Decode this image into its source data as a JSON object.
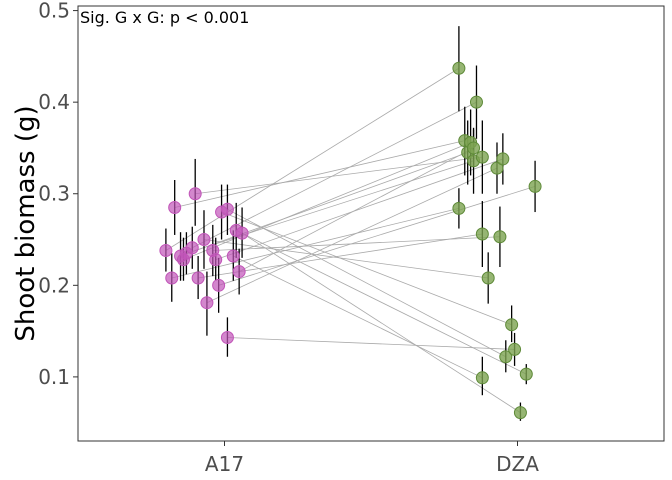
{
  "chart_data": {
    "type": "scatter",
    "title": "",
    "xlabel": "",
    "ylabel": "Shoot biomass (g)",
    "annotation": "Sig. G x G: p < 0.001",
    "categories": [
      "A17",
      "DZA"
    ],
    "ylim": [
      0.03,
      0.505
    ],
    "y_ticks": [
      0.1,
      0.2,
      0.3,
      0.4,
      0.5
    ],
    "y_tick_labels": [
      "0.1",
      "0.2",
      "0.3",
      "0.4",
      "0.5"
    ],
    "grid": false,
    "legend": "none",
    "colors": {
      "A17": "#c154b8",
      "DZA": "#7ca350",
      "connector": "#aaaaaa",
      "errorbar": "#000000",
      "frame": "#333333"
    },
    "pairs": [
      {
        "a17_x": 0.8,
        "a17": 0.238,
        "a17_lo": 0.215,
        "a17_hi": 0.262,
        "dza_x": 1.8,
        "dza": 0.437,
        "dza_lo": 0.39,
        "dza_hi": 0.483
      },
      {
        "a17_x": 0.82,
        "a17": 0.208,
        "a17_lo": 0.182,
        "a17_hi": 0.235,
        "dza_x": 1.8,
        "dza": 0.284,
        "dza_lo": 0.262,
        "dza_hi": 0.306
      },
      {
        "a17_x": 0.83,
        "a17": 0.285,
        "a17_lo": 0.255,
        "a17_hi": 0.315,
        "dza_x": 1.82,
        "dza": 0.358,
        "dza_lo": 0.32,
        "dza_hi": 0.395
      },
      {
        "a17_x": 0.85,
        "a17": 0.232,
        "a17_lo": 0.205,
        "a17_hi": 0.258,
        "dza_x": 1.83,
        "dza": 0.345,
        "dza_lo": 0.31,
        "dza_hi": 0.38
      },
      {
        "a17_x": 0.86,
        "a17": 0.228,
        "a17_lo": 0.205,
        "a17_hi": 0.252,
        "dza_x": 1.84,
        "dza": 0.356,
        "dza_lo": 0.32,
        "dza_hi": 0.392
      },
      {
        "a17_x": 0.87,
        "a17": 0.235,
        "a17_lo": 0.212,
        "a17_hi": 0.258,
        "dza_x": 1.85,
        "dza": 0.336,
        "dza_lo": 0.3,
        "dza_hi": 0.372
      },
      {
        "a17_x": 0.89,
        "a17": 0.241,
        "a17_lo": 0.218,
        "a17_hi": 0.264,
        "dza_x": 1.86,
        "dza": 0.4,
        "dza_lo": 0.36,
        "dza_hi": 0.44
      },
      {
        "a17_x": 0.9,
        "a17": 0.3,
        "a17_lo": 0.265,
        "a17_hi": 0.338,
        "dza_x": 1.88,
        "dza": 0.34,
        "dza_lo": 0.3,
        "dza_hi": 0.38
      },
      {
        "a17_x": 0.91,
        "a17": 0.208,
        "a17_lo": 0.185,
        "a17_hi": 0.232,
        "dza_x": 1.88,
        "dza": 0.256,
        "dza_lo": 0.22,
        "dza_hi": 0.292
      },
      {
        "a17_x": 0.93,
        "a17": 0.25,
        "a17_lo": 0.218,
        "a17_hi": 0.282,
        "dza_x": 1.9,
        "dza": 0.208,
        "dza_lo": 0.18,
        "dza_hi": 0.236
      },
      {
        "a17_x": 0.94,
        "a17": 0.181,
        "a17_lo": 0.145,
        "a17_hi": 0.215,
        "dza_x": 1.93,
        "dza": 0.328,
        "dza_lo": 0.3,
        "dza_hi": 0.356
      },
      {
        "a17_x": 0.96,
        "a17": 0.238,
        "a17_lo": 0.21,
        "a17_hi": 0.266,
        "dza_x": 1.94,
        "dza": 0.253,
        "dza_lo": 0.22,
        "dza_hi": 0.286
      },
      {
        "a17_x": 0.97,
        "a17": 0.228,
        "a17_lo": 0.205,
        "a17_hi": 0.252,
        "dza_x": 1.95,
        "dza": 0.338,
        "dza_lo": 0.31,
        "dza_hi": 0.366
      },
      {
        "a17_x": 0.98,
        "a17": 0.2,
        "a17_lo": 0.17,
        "a17_hi": 0.23,
        "dza_x": 2.06,
        "dza": 0.308,
        "dza_lo": 0.28,
        "dza_hi": 0.336
      },
      {
        "a17_x": 0.99,
        "a17": 0.28,
        "a17_lo": 0.25,
        "a17_hi": 0.31,
        "dza_x": 1.98,
        "dza": 0.157,
        "dza_lo": 0.138,
        "dza_hi": 0.178
      },
      {
        "a17_x": 1.01,
        "a17": 0.283,
        "a17_lo": 0.255,
        "a17_hi": 0.31,
        "dza_x": 1.96,
        "dza": 0.122,
        "dza_lo": 0.105,
        "dza_hi": 0.14
      },
      {
        "a17_x": 1.01,
        "a17": 0.143,
        "a17_lo": 0.122,
        "a17_hi": 0.165,
        "dza_x": 1.99,
        "dza": 0.13,
        "dza_lo": 0.112,
        "dza_hi": 0.148
      },
      {
        "a17_x": 1.03,
        "a17": 0.232,
        "a17_lo": 0.205,
        "a17_hi": 0.26,
        "dza_x": 1.88,
        "dza": 0.099,
        "dza_lo": 0.08,
        "dza_hi": 0.122
      },
      {
        "a17_x": 1.04,
        "a17": 0.26,
        "a17_lo": 0.23,
        "a17_hi": 0.29,
        "dza_x": 2.03,
        "dza": 0.103,
        "dza_lo": 0.092,
        "dza_hi": 0.114
      },
      {
        "a17_x": 1.05,
        "a17": 0.215,
        "a17_lo": 0.19,
        "a17_hi": 0.24,
        "dza_x": 1.85,
        "dza": 0.35,
        "dza_lo": 0.33,
        "dza_hi": 0.37
      },
      {
        "a17_x": 1.06,
        "a17": 0.257,
        "a17_lo": 0.23,
        "a17_hi": 0.285,
        "dza_x": 2.01,
        "dza": 0.061,
        "dza_lo": 0.052,
        "dza_hi": 0.072
      }
    ]
  }
}
